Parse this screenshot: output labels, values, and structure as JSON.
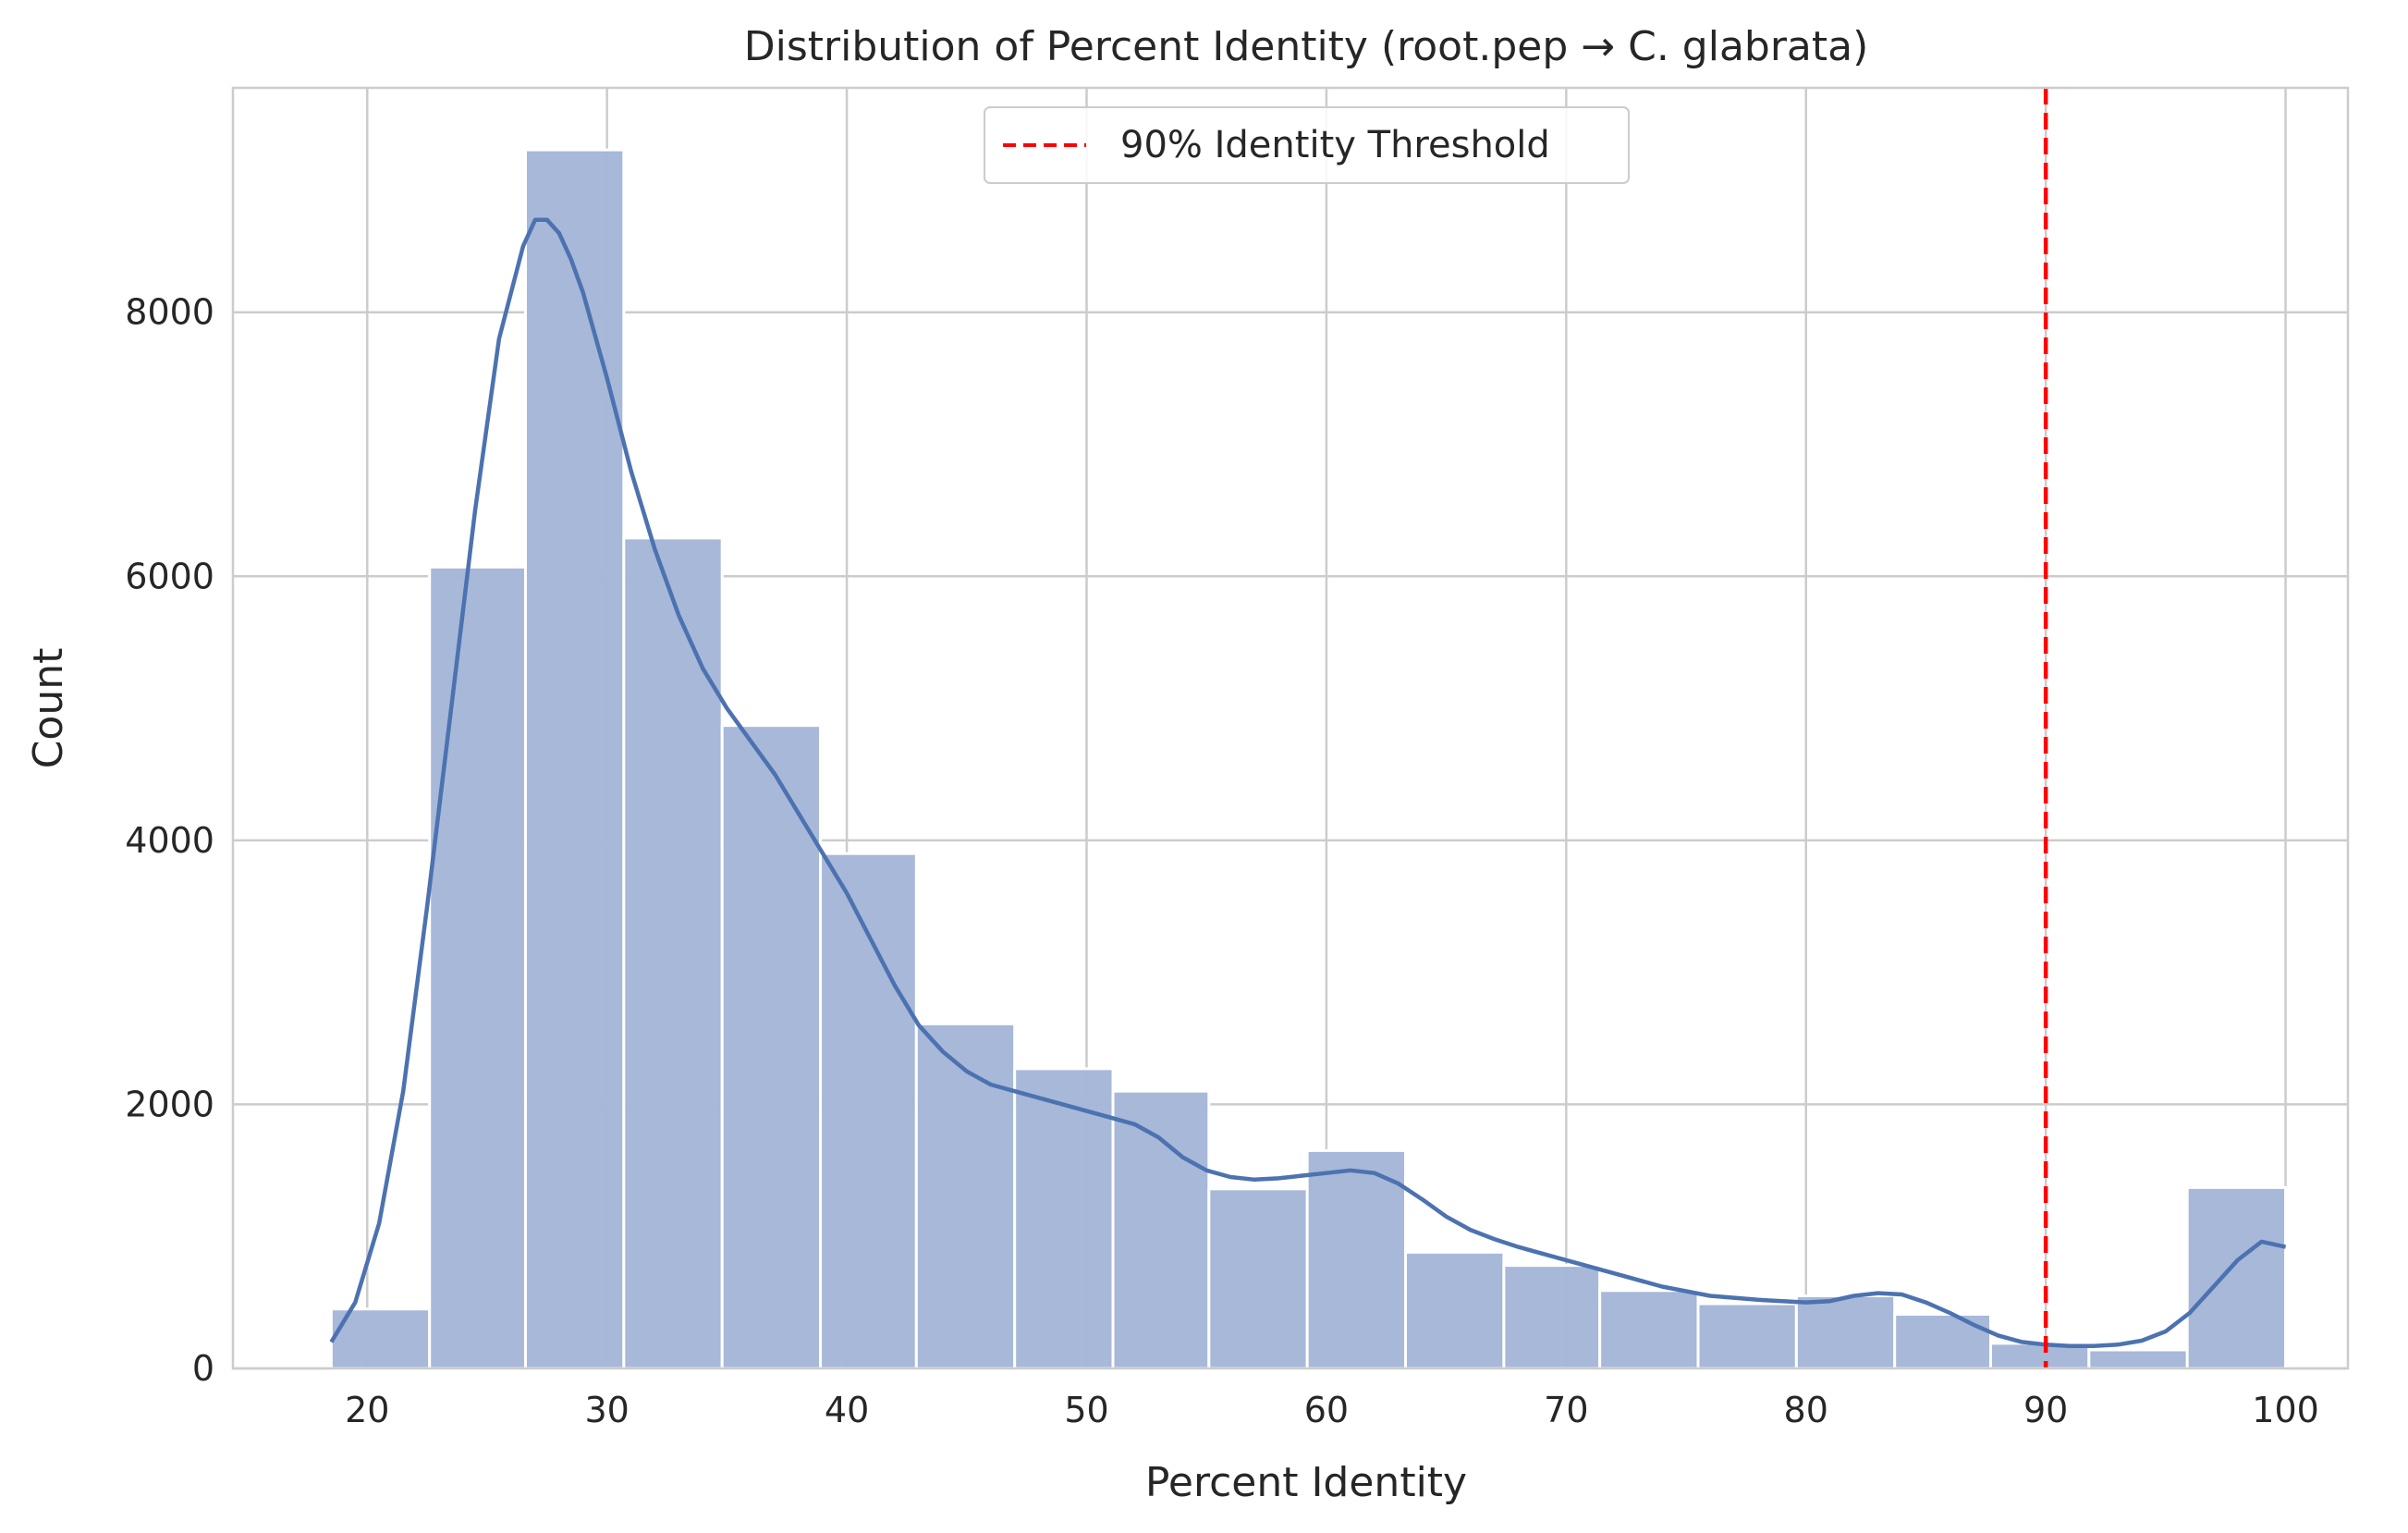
{
  "chart_data": {
    "type": "bar",
    "title": "Distribution of Percent Identity (root.pep → C. glabrata)",
    "xlabel": "Percent Identity",
    "ylabel": "Count",
    "xlim": [
      14.4,
      102.6
    ],
    "ylim": [
      0,
      9700
    ],
    "xticks": [
      20,
      30,
      40,
      50,
      60,
      70,
      80,
      90,
      100
    ],
    "yticks": [
      0,
      2000,
      4000,
      6000,
      8000
    ],
    "grid": true,
    "legend_placement": "top-center",
    "bin_edges": [
      18.5,
      22.6,
      26.6,
      30.7,
      34.8,
      38.9,
      42.9,
      47.0,
      51.1,
      55.1,
      59.2,
      63.3,
      67.4,
      71.4,
      75.5,
      79.6,
      83.7,
      87.7,
      91.8,
      95.9,
      100.0
    ],
    "values": [
      450,
      6070,
      9230,
      6290,
      4870,
      3900,
      2610,
      2270,
      2100,
      1360,
      1650,
      880,
      780,
      590,
      490,
      550,
      410,
      190,
      140,
      1370
    ],
    "kde": {
      "x": [
        18.5,
        19.5,
        20.5,
        21.5,
        22.5,
        23.5,
        24.5,
        25.5,
        26.5,
        27.0,
        27.5,
        28.0,
        28.5,
        29.0,
        30.0,
        31.0,
        32.0,
        33.0,
        34.0,
        35.0,
        36.0,
        37.0,
        38.0,
        39.0,
        40.0,
        41.0,
        42.0,
        43.0,
        44.0,
        45.0,
        46.0,
        47.0,
        48.0,
        49.0,
        50.0,
        51.0,
        52.0,
        53.0,
        54.0,
        55.0,
        56.0,
        57.0,
        58.0,
        59.0,
        60.0,
        61.0,
        62.0,
        63.0,
        64.0,
        65.0,
        66.0,
        67.0,
        68.0,
        69.0,
        70.0,
        72.0,
        74.0,
        76.0,
        78.0,
        80.0,
        81.0,
        82.0,
        83.0,
        84.0,
        85.0,
        86.0,
        87.0,
        88.0,
        89.0,
        90.0,
        91.0,
        92.0,
        93.0,
        94.0,
        95.0,
        96.0,
        97.0,
        98.0,
        99.0,
        100.0
      ],
      "y": [
        200,
        500,
        1100,
        2100,
        3500,
        5000,
        6500,
        7800,
        8500,
        8700,
        8700,
        8600,
        8400,
        8150,
        7500,
        6800,
        6200,
        5700,
        5300,
        5000,
        4750,
        4500,
        4200,
        3900,
        3600,
        3250,
        2900,
        2600,
        2400,
        2250,
        2150,
        2100,
        2050,
        2000,
        1950,
        1900,
        1850,
        1750,
        1600,
        1500,
        1450,
        1430,
        1440,
        1460,
        1480,
        1500,
        1480,
        1400,
        1280,
        1150,
        1050,
        980,
        920,
        870,
        820,
        720,
        620,
        550,
        520,
        500,
        510,
        550,
        570,
        560,
        500,
        420,
        330,
        250,
        200,
        180,
        170,
        170,
        180,
        210,
        280,
        420,
        620,
        820,
        960,
        920
      ]
    },
    "threshold": {
      "x": 90,
      "label": "90% Identity Threshold"
    },
    "colors": {
      "bar_fill": "#a5b7d8",
      "bar_edge": "#ffffff",
      "kde": "#4c72b0",
      "threshold": "#ff0000",
      "grid": "#cccccc",
      "spine": "#cccccc",
      "text": "#262626"
    }
  }
}
